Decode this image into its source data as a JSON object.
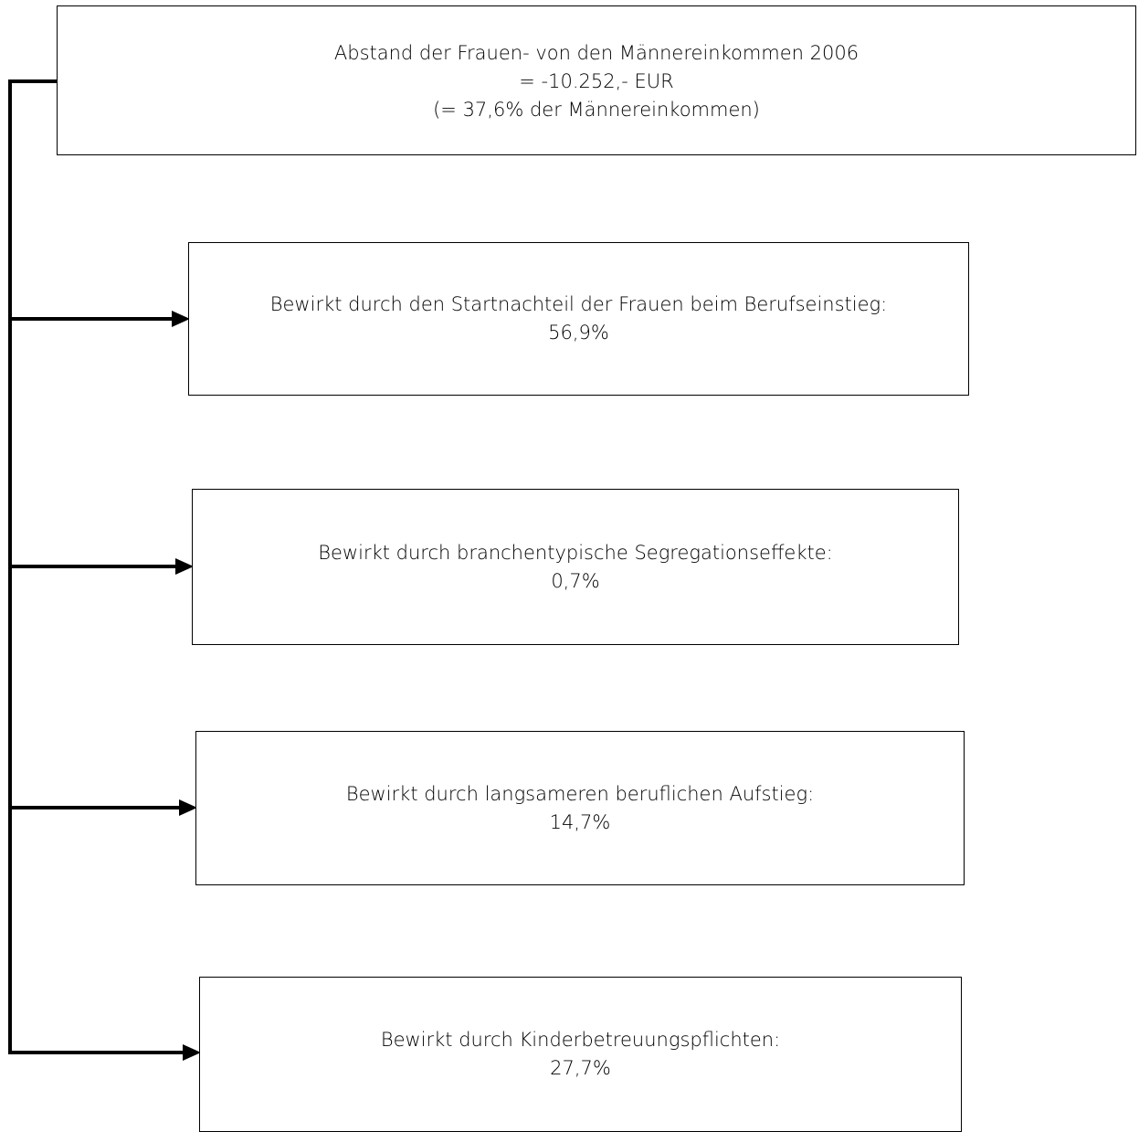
{
  "top_box": {
    "line1": "Abstand der Frauen- von den Männereinkommen 2006",
    "line2": "= -10.252,- EUR",
    "line3": "(= 37,6% der Männereinkommen)"
  },
  "factors": [
    {
      "label": "Bewirkt durch den Startnachteil der Frauen beim Berufseinstieg:",
      "value": "56,9%"
    },
    {
      "label": "Bewirkt durch branchentypische Segregationseffekte:",
      "value": "0,7%"
    },
    {
      "label": "Bewirkt durch langsameren beruflichen Aufstieg:",
      "value": "14,7%"
    },
    {
      "label": "Bewirkt durch Kinderbetreuungspflichten:",
      "value": "27,7%"
    }
  ],
  "colors": {
    "line": "#000000",
    "box_border": "#000000",
    "background": "#ffffff"
  }
}
